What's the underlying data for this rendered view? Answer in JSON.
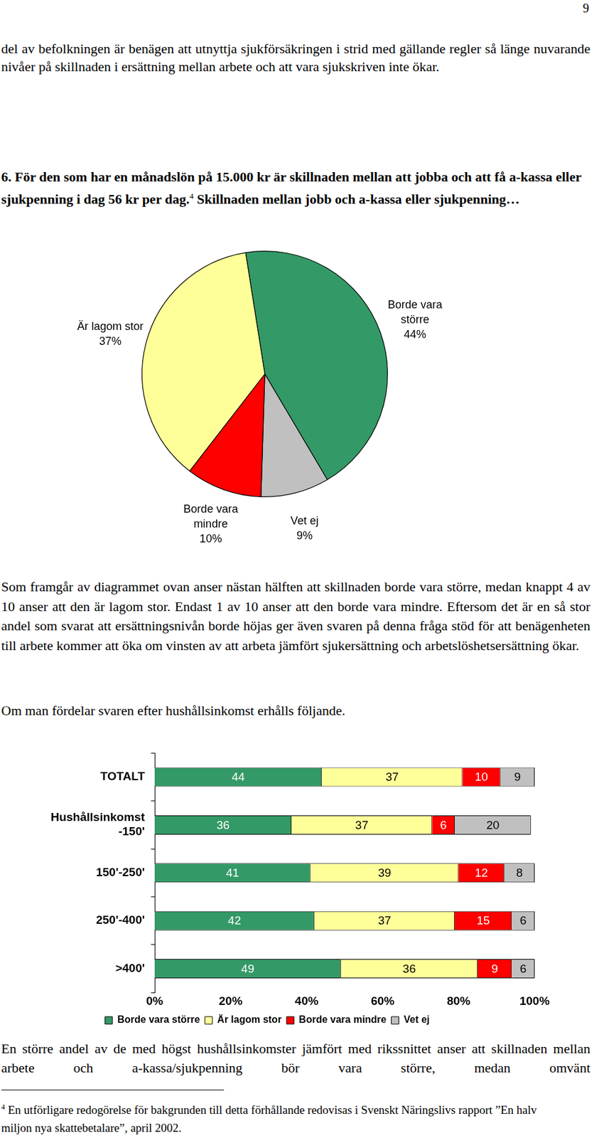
{
  "page": {
    "page_number": "9",
    "intro": "del av befolkningen är benägen att utnyttja sjukförsäkringen i strid med gällande regler så länge nuvarande nivåer på skillnaden i ersättning mellan arbete och att vara sjukskriven inte ökar.",
    "heading": {
      "text": "6. För den som har en månadslön på 15.000 kr är skillnaden mellan att jobba och att få a-kassa eller sjukpenning i dag 56 kr per dag.",
      "footnote_ref": "4",
      "text_after": "Skillnaden mellan jobb och a-kassa eller sjukpenning…"
    },
    "paragraph_after_pie": "Som framgår av diagrammet ovan anser nästan hälften att skillnaden borde vara större, medan knappt 4 av 10 anser att den är lagom stor. Endast 1 av 10 anser att den borde vara mindre. Eftersom det är en så stor andel som svarat att ersättningsnivån borde höjas ger även svaren på denna fråga stöd för att benägenheten till arbete kommer att öka om vinsten av att arbeta jämfört sjukersättning och arbetslöshetsersättning ökar.",
    "paragraph_before_bars": "Om man fördelar svaren efter hushållsinkomst erhålls följande.",
    "paragraph_after_bars": "En större andel av de med högst hushållsinkomster jämfört med rikssnittet anser att skillnaden mellan arbete och a-kassa/sjukpenning bör vara större, medan omvänt",
    "footnote": {
      "ref": "4",
      "text": "En utförligare redogörelse för bakgrunden till detta förhållande redovisas i Svenskt Näringslivs rapport ”En halv miljon nya skattebetalare”, april 2002."
    }
  },
  "chart_data": [
    {
      "type": "pie",
      "categories": [
        "Borde vara större",
        "Vet ej",
        "Borde vara mindre",
        "Är lagom stor"
      ],
      "values": [
        44,
        9,
        10,
        37
      ],
      "value_labels": [
        "44%",
        "9%",
        "10%",
        "37%"
      ],
      "colors": [
        "#339966",
        "#c0c0c0",
        "#ff0000",
        "#ffff99"
      ],
      "data_labels": true
    },
    {
      "type": "bar",
      "orientation": "horizontal",
      "stacked": true,
      "categories": [
        "TOTALT",
        [
          "Hushållsinkomst",
          "-150'"
        ],
        "150'-250'",
        "250'-400'",
        ">400'"
      ],
      "series": [
        {
          "name": "Borde vara större",
          "color": "#339966",
          "values": [
            44,
            36,
            41,
            42,
            49
          ]
        },
        {
          "name": "Är lagom stor",
          "color": "#ffff99",
          "values": [
            37,
            37,
            39,
            37,
            36
          ]
        },
        {
          "name": "Borde vara mindre",
          "color": "#ff0000",
          "values": [
            10,
            6,
            12,
            15,
            9
          ]
        },
        {
          "name": "Vet ej",
          "color": "#c0c0c0",
          "values": [
            9,
            20,
            8,
            6,
            6
          ]
        }
      ],
      "xlim": [
        0,
        100
      ],
      "xticks": [
        {
          "value": 0,
          "label": "0%"
        },
        {
          "value": 20,
          "label": "20%"
        },
        {
          "value": 40,
          "label": "40%"
        },
        {
          "value": 60,
          "label": "60%"
        },
        {
          "value": 80,
          "label": "80%"
        },
        {
          "value": 100,
          "label": "100%"
        }
      ],
      "grid": false,
      "legend": "bottom",
      "data_labels": true
    }
  ]
}
